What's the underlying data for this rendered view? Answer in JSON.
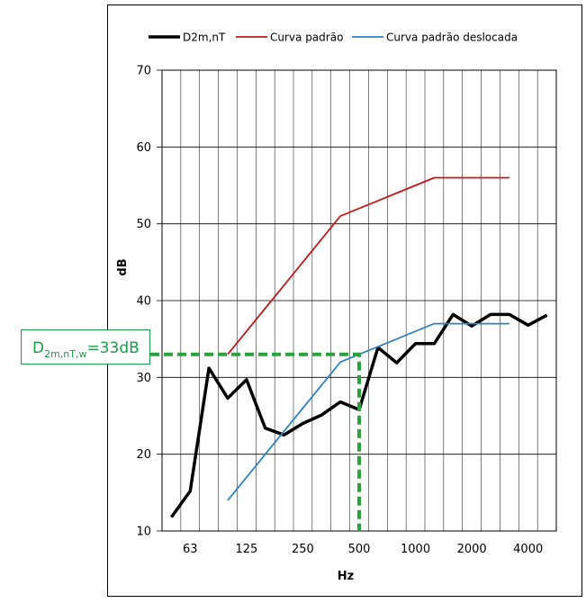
{
  "chart_data": {
    "type": "line",
    "xlabel": "Hz",
    "ylabel": "dB",
    "ylim": [
      10,
      70
    ],
    "y_ticks": [
      10,
      20,
      30,
      40,
      50,
      60,
      70
    ],
    "x_categories": [
      "50",
      "63",
      "80",
      "100",
      "125",
      "160",
      "200",
      "250",
      "315",
      "400",
      "500",
      "630",
      "800",
      "1000",
      "1250",
      "1600",
      "2000",
      "2500",
      "3150",
      "4000",
      "5000"
    ],
    "x_tick_labels": [
      "",
      "63",
      "",
      "",
      "125",
      "",
      "",
      "250",
      "",
      "",
      "500",
      "",
      "",
      "1000",
      "",
      "",
      "2000",
      "",
      "",
      "4000",
      ""
    ],
    "grid": true,
    "legend_position": "top",
    "series": [
      {
        "name": "D2m,nT",
        "color": "#000000",
        "values": [
          11.8,
          15.2,
          31.2,
          27.3,
          29.7,
          23.4,
          22.5,
          24.0,
          25.1,
          26.8,
          25.8,
          33.9,
          31.9,
          34.4,
          34.4,
          38.2,
          36.7,
          38.2,
          38.2,
          36.8,
          38.1
        ]
      },
      {
        "name": "Curva padrão",
        "color": "#c0191b",
        "values": [
          null,
          null,
          null,
          33,
          36,
          39,
          42,
          45,
          48,
          51,
          52,
          53,
          54,
          55,
          56,
          56,
          56,
          56,
          56,
          null,
          null
        ]
      },
      {
        "name": "Curva padrão deslocada",
        "color": "#2e83c6",
        "values": [
          null,
          null,
          null,
          14,
          17,
          20,
          23,
          26,
          29,
          32,
          33,
          34,
          35,
          36,
          37,
          37,
          37,
          37,
          37,
          null,
          null
        ]
      }
    ],
    "annotation": {
      "label_prefix": "D",
      "label_subscript": "2m,nT,w",
      "label_suffix": "=33dB",
      "value": 33,
      "at_frequency": "500",
      "color": "#1a9d49",
      "line_color": "#2aa33e"
    }
  }
}
